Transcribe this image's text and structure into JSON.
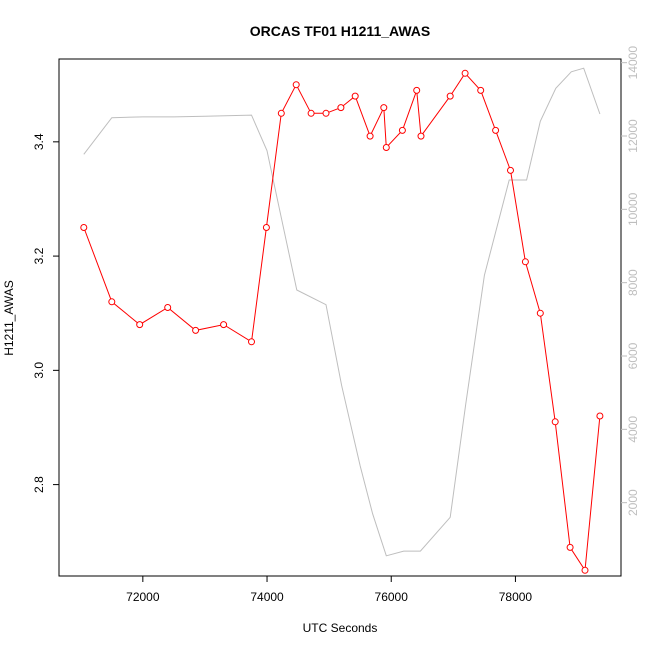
{
  "chart_data": {
    "type": "line",
    "title": "ORCAS TF01 H1211_AWAS",
    "xlabel": "UTC Seconds",
    "ylabel": "H1211_AWAS",
    "xlim": [
      70650,
      79700
    ],
    "ylim": [
      2.64,
      3.545
    ],
    "y2lim": [
      0,
      14100
    ],
    "x_ticks": [
      72000,
      74000,
      76000,
      78000
    ],
    "y_ticks": [
      2.8,
      3.0,
      3.2,
      3.4
    ],
    "y2_ticks": [
      2000,
      4000,
      6000,
      8000,
      10000,
      12000,
      14000
    ],
    "colors": {
      "primary": "#ff0000",
      "secondary": "#bebebe",
      "axis": "#000000"
    },
    "series": [
      {
        "axis": "left",
        "color": "#ff0000",
        "marker": "open-circle",
        "x": [
          71050,
          71500,
          71950,
          72400,
          72850,
          73300,
          73750,
          73990,
          74230,
          74470,
          74710,
          74950,
          75190,
          75420,
          75660,
          75880,
          75920,
          76180,
          76410,
          76480,
          76950,
          77190,
          77440,
          77680,
          77920,
          78160,
          78400,
          78640,
          78880,
          79120,
          79360
        ],
        "y": [
          3.25,
          3.12,
          3.08,
          3.11,
          3.07,
          3.08,
          3.05,
          3.25,
          3.45,
          3.5,
          3.45,
          3.45,
          3.46,
          3.48,
          3.41,
          3.46,
          3.39,
          3.42,
          3.49,
          3.41,
          3.48,
          3.52,
          3.49,
          3.42,
          3.35,
          3.19,
          3.1,
          2.91,
          2.69,
          2.65,
          2.92
        ]
      },
      {
        "axis": "right",
        "color": "#bebebe",
        "marker": "none",
        "x": [
          71050,
          71500,
          72000,
          72500,
          73000,
          73500,
          73750,
          74000,
          74200,
          74480,
          74950,
          75200,
          75500,
          75700,
          75920,
          76200,
          76470,
          76950,
          77200,
          77500,
          77900,
          78180,
          78400,
          78650,
          78900,
          79100,
          79360
        ],
        "y": [
          11500,
          12500,
          12520,
          12520,
          12540,
          12560,
          12570,
          11600,
          10000,
          7800,
          7400,
          5200,
          3000,
          1700,
          550,
          680,
          680,
          1600,
          4700,
          8200,
          10800,
          10800,
          12400,
          13300,
          13750,
          13850,
          12600
        ]
      }
    ]
  }
}
